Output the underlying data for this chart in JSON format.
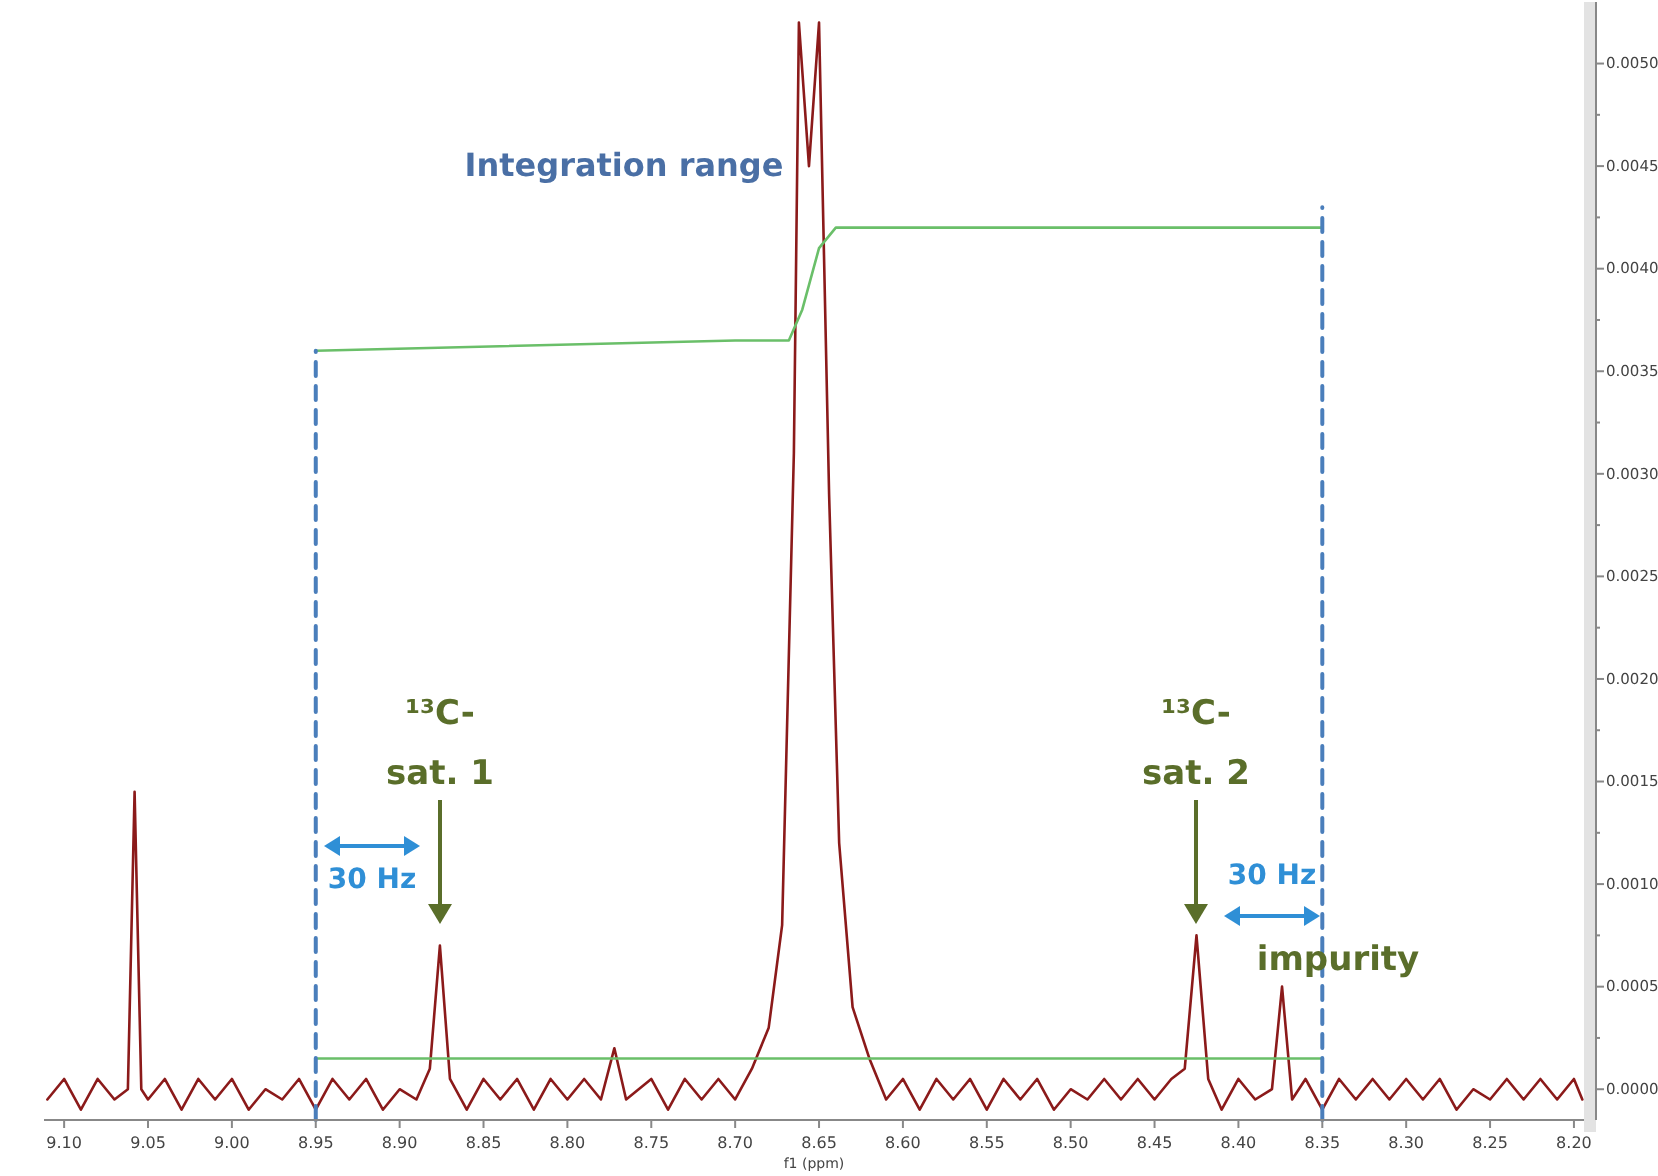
{
  "chart_data": {
    "type": "line",
    "xlabel": "f1 (ppm)",
    "xlim": [
      9.112,
      8.194
    ],
    "ylim": [
      -0.00015,
      0.0053
    ],
    "xticks": [
      {
        "value": 9.1,
        "label": "9.10"
      },
      9.05,
      {
        "value": 9.0,
        "label": "9.00"
      },
      8.95,
      {
        "value": 8.9,
        "label": "8.90"
      },
      8.85,
      {
        "value": 8.8,
        "label": "8.80"
      },
      8.75,
      {
        "value": 8.7,
        "label": "8.70"
      },
      8.65,
      {
        "value": 8.6,
        "label": "8.60"
      },
      8.55,
      {
        "value": 8.5,
        "label": "8.50"
      },
      8.45,
      {
        "value": 8.4,
        "label": "8.40"
      },
      8.35,
      {
        "value": 8.3,
        "label": "8.30"
      },
      8.25,
      {
        "value": 8.2,
        "label": "8.20"
      }
    ],
    "yticks": [
      {
        "value": 0,
        "label": "0.0000"
      },
      {
        "value": 0.00025,
        "label": null
      },
      {
        "value": 0.0005,
        "label": "0.0005"
      },
      {
        "value": 0.00075,
        "label": null
      },
      {
        "value": 0.001,
        "label": "0.0010"
      },
      {
        "value": 0.00125,
        "label": null
      },
      {
        "value": 0.0015,
        "label": "0.0015"
      },
      {
        "value": 0.00175,
        "label": null
      },
      {
        "value": 0.002,
        "label": "0.0020"
      },
      {
        "value": 0.00225,
        "label": null
      },
      {
        "value": 0.0025,
        "label": "0.0025"
      },
      {
        "value": 0.00275,
        "label": null
      },
      {
        "value": 0.003,
        "label": "0.0030"
      },
      {
        "value": 0.00325,
        "label": null
      },
      {
        "value": 0.0035,
        "label": "0.0035"
      },
      {
        "value": 0.00375,
        "label": null
      },
      {
        "value": 0.004,
        "label": "0.0040"
      },
      {
        "value": 0.00425,
        "label": null
      },
      {
        "value": 0.0045,
        "label": "0.0045"
      },
      {
        "value": 0.00475,
        "label": null
      },
      {
        "value": 0.005,
        "label": "0.0050"
      }
    ],
    "marker": "none",
    "series": [
      {
        "color": "#8b1a1a",
        "line_style": "solid",
        "x": [
          9.11,
          9.1,
          9.09,
          9.08,
          9.07,
          9.062,
          9.058,
          9.054,
          9.05,
          9.04,
          9.03,
          9.02,
          9.01,
          9.0,
          8.99,
          8.98,
          8.97,
          8.96,
          8.95,
          8.94,
          8.93,
          8.92,
          8.91,
          8.9,
          8.89,
          8.882,
          8.876,
          8.87,
          8.86,
          8.85,
          8.84,
          8.83,
          8.82,
          8.81,
          8.8,
          8.79,
          8.78,
          8.772,
          8.765,
          8.75,
          8.74,
          8.73,
          8.72,
          8.71,
          8.7,
          8.69,
          8.68,
          8.672,
          8.665,
          8.662,
          8.656,
          8.65,
          8.644,
          8.638,
          8.63,
          8.62,
          8.61,
          8.6,
          8.59,
          8.58,
          8.57,
          8.56,
          8.55,
          8.54,
          8.53,
          8.52,
          8.51,
          8.5,
          8.49,
          8.48,
          8.47,
          8.46,
          8.45,
          8.44,
          8.432,
          8.425,
          8.418,
          8.41,
          8.4,
          8.39,
          8.38,
          8.374,
          8.368,
          8.36,
          8.35,
          8.34,
          8.33,
          8.32,
          8.31,
          8.3,
          8.29,
          8.28,
          8.27,
          8.26,
          8.25,
          8.24,
          8.23,
          8.22,
          8.21,
          8.2,
          8.195
        ],
        "values": [
          -5e-05,
          5e-05,
          -0.0001,
          5e-05,
          -5e-05,
          0,
          0.00145,
          0,
          -5e-05,
          5e-05,
          -0.0001,
          5e-05,
          -5e-05,
          5e-05,
          -0.0001,
          0,
          -5e-05,
          5e-05,
          -0.0001,
          5e-05,
          -5e-05,
          5e-05,
          -0.0001,
          0,
          -5e-05,
          0.0001,
          0.0007,
          5e-05,
          -0.0001,
          5e-05,
          -5e-05,
          5e-05,
          -0.0001,
          5e-05,
          -5e-05,
          5e-05,
          -5e-05,
          0.0002,
          -5e-05,
          5e-05,
          -0.0001,
          5e-05,
          -5e-05,
          5e-05,
          -5e-05,
          0.0001,
          0.0003,
          0.0008,
          0.0031,
          0.0052,
          0.0045,
          0.0052,
          0.0029,
          0.0012,
          0.0004,
          0.00015,
          -5e-05,
          5e-05,
          -0.0001,
          5e-05,
          -5e-05,
          5e-05,
          -0.0001,
          5e-05,
          -5e-05,
          5e-05,
          -0.0001,
          0,
          -5e-05,
          5e-05,
          -5e-05,
          5e-05,
          -5e-05,
          5e-05,
          0.0001,
          0.00075,
          5e-05,
          -0.0001,
          5e-05,
          -5e-05,
          0,
          0.0005,
          -5e-05,
          5e-05,
          -0.0001,
          5e-05,
          -5e-05,
          5e-05,
          -5e-05,
          5e-05,
          -5e-05,
          5e-05,
          -0.0001,
          0,
          -5e-05,
          5e-05,
          -5e-05,
          5e-05,
          -5e-05,
          5e-05,
          -5e-05
        ]
      },
      {
        "color": "#6abf69",
        "line_style": "solid",
        "x": [
          8.95,
          8.7,
          8.668,
          8.66,
          8.65,
          8.64,
          8.35
        ],
        "values": [
          0.0036,
          0.00365,
          0.00365,
          0.0038,
          0.0041,
          0.0042,
          0.0042
        ]
      },
      {
        "color": "#6abf69",
        "line_style": "solid",
        "x": [
          8.95,
          8.35
        ],
        "values": [
          0.00015,
          0.00015
        ]
      },
      {
        "color": "#4a7ebb",
        "line_style": "dashed",
        "x": [
          8.95,
          8.95
        ],
        "values": [
          -0.00015,
          0.0036
        ]
      },
      {
        "color": "#4a7ebb",
        "line_style": "dashed",
        "x": [
          8.35,
          8.35
        ],
        "values": [
          -0.00015,
          0.0043
        ]
      }
    ],
    "annotations": [
      "Integration range",
      "¹³C-\nsat. 1",
      "¹³C-\nsat. 2",
      "30 Hz",
      "30 Hz",
      "impurity"
    ]
  }
}
